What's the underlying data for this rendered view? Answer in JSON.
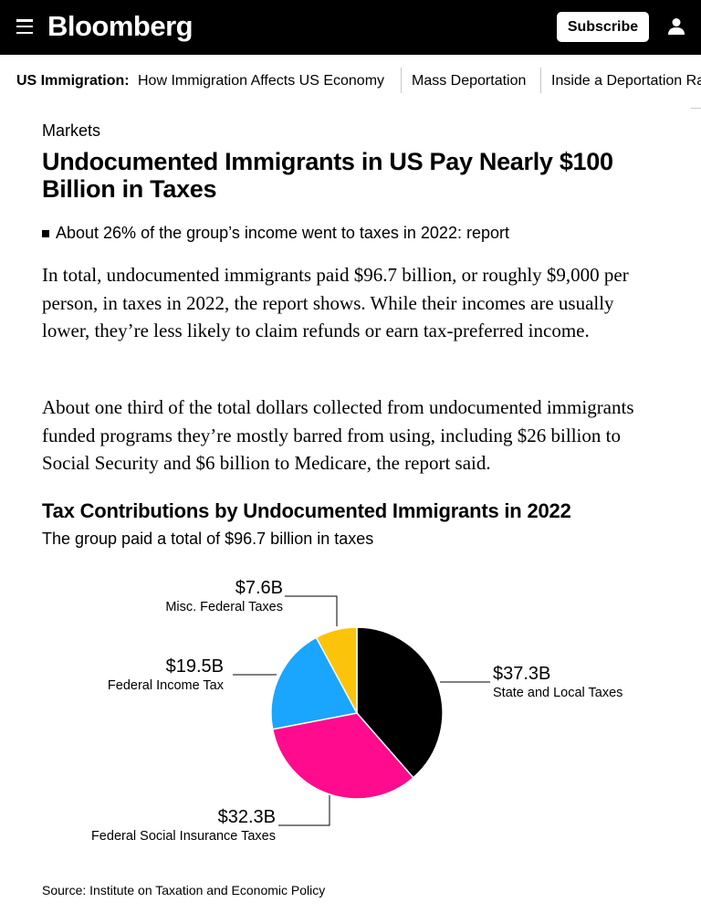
{
  "header": {
    "logo": "Bloomberg",
    "subscribe_label": "Subscribe",
    "menu_icon": "hamburger-menu-icon",
    "user_icon": "user-account-icon",
    "colors": {
      "bar_bg": "#000000",
      "bar_fg": "#ffffff"
    }
  },
  "subnav": {
    "title": "US Immigration:",
    "links": [
      "How Immigration Affects US Economy",
      "Mass Deportation",
      "Inside a Deportation Raid"
    ]
  },
  "article": {
    "section": "Markets",
    "headline": "Undocumented Immigrants in US Pay Nearly $100 Billion in Taxes",
    "bullet": "About 26% of the group’s income went to taxes in 2022: report",
    "paragraphs": [
      "In total, undocumented immigrants paid $96.7 billion, or roughly $9,000 per person, in taxes in 2022, the report shows. While their incomes are usually lower, they’re less likely to claim refunds or earn tax-preferred income.",
      "About one third of the total dollars collected from undocumented immigrants funded programs they’re mostly barred from using, including $26 billion to Social Security and $6 billion to Medicare, the report said."
    ]
  },
  "chart_data": {
    "type": "pie",
    "title": "Tax Contributions by Undocumented Immigrants in 2022",
    "subtitle": "The group paid a total of $96.7 billion in taxes",
    "slices": [
      {
        "name": "State and Local Taxes",
        "label": "$37.3B",
        "value": 37.3,
        "color": "#000000"
      },
      {
        "name": "Federal Social Insurance Taxes",
        "label": "$32.3B",
        "value": 32.3,
        "color": "#ff0b8d"
      },
      {
        "name": "Federal Income Tax",
        "label": "$19.5B",
        "value": 19.5,
        "color": "#1aa5fe"
      },
      {
        "name": "Misc. Federal Taxes",
        "label": "$7.6B",
        "value": 7.6,
        "color": "#fcc30b"
      }
    ],
    "source": "Source: Institute on Taxation and Economic Policy"
  }
}
